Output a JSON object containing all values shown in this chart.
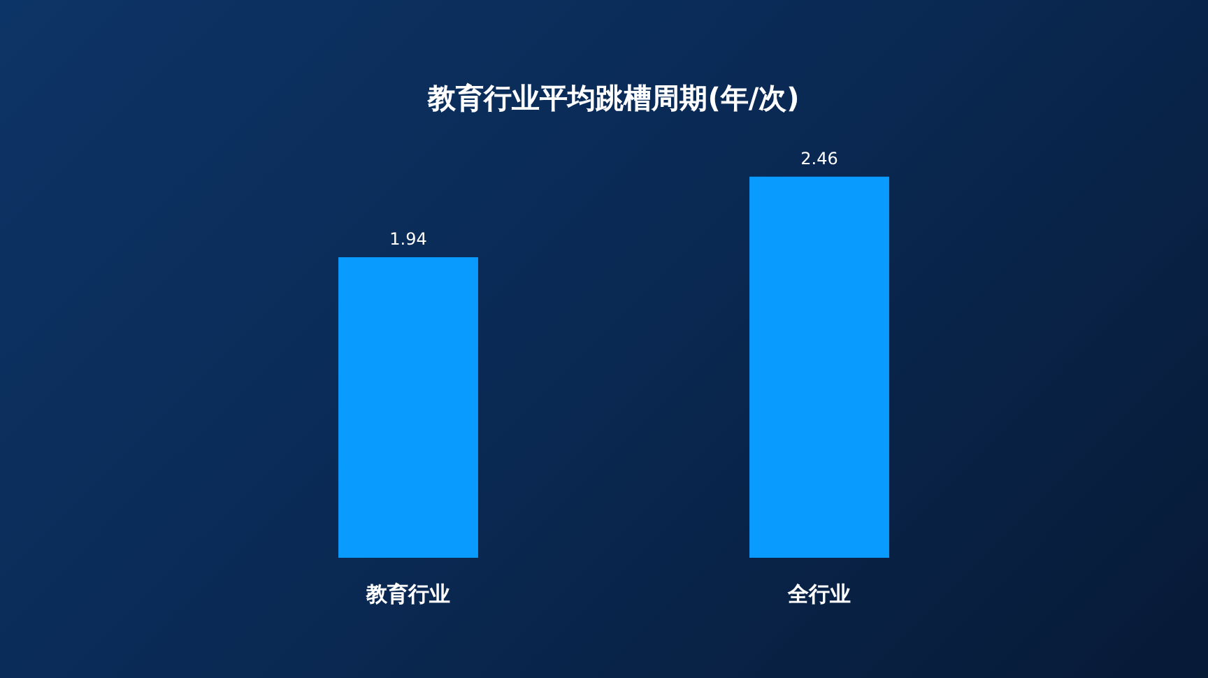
{
  "chart_data": {
    "type": "bar",
    "title": "教育行业平均跳槽周期(年/次)",
    "categories": [
      "教育行业",
      "全行业"
    ],
    "values": [
      1.94,
      2.46
    ],
    "color": "#0a9bff",
    "data_labels": true
  }
}
